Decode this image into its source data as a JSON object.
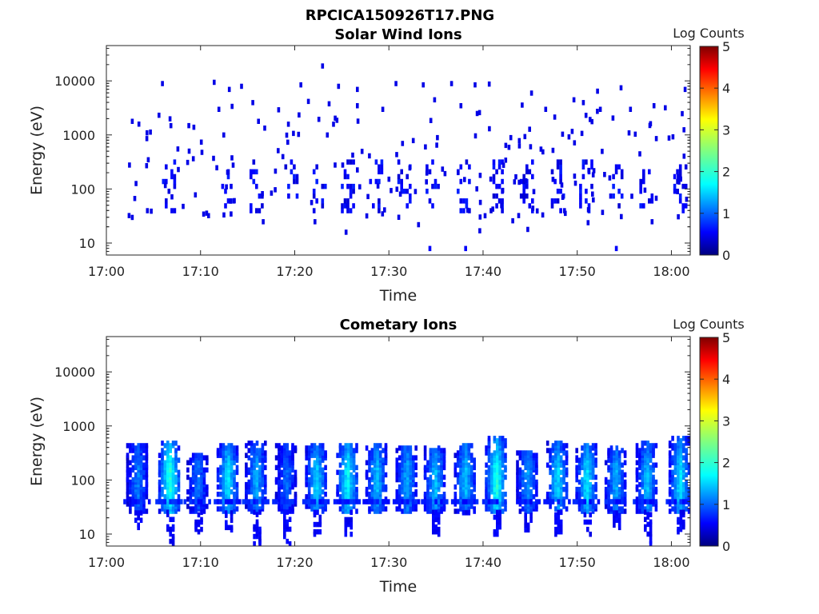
{
  "figure": {
    "title": "RPCICA150926T17.PNG"
  },
  "colorbar": {
    "label": "Log Counts",
    "ticks": [
      "0",
      "1",
      "2",
      "3",
      "4",
      "5"
    ],
    "range": [
      0,
      5
    ],
    "colormap": "jet"
  },
  "chart_data": [
    {
      "type": "heatmap",
      "title": "Solar Wind Ions",
      "xlabel": "Time",
      "ylabel": "Energy (eV)",
      "yscale": "log",
      "ylim": [
        6,
        45000
      ],
      "xlim": [
        "17:00",
        "18:02"
      ],
      "x_ticks": [
        "17:00",
        "17:10",
        "17:20",
        "17:30",
        "17:40",
        "17:50",
        "18:00"
      ],
      "y_ticks": [
        "10",
        "100",
        "1000",
        "10000"
      ],
      "burst_times_min": [
        6.5,
        12.8,
        15.8,
        19.5,
        22.5,
        25.5,
        28.5,
        31.5,
        34.5,
        37.8,
        41.3,
        44.5,
        47.8,
        50.8,
        54.0,
        57.2,
        60.8
      ],
      "points": [
        {
          "t": 5.8,
          "e": 9000,
          "v": 0.5
        },
        {
          "t": 11.3,
          "e": 9500,
          "v": 0.5
        },
        {
          "t": 12.9,
          "e": 7000,
          "v": 0.5
        },
        {
          "t": 14.2,
          "e": 8000,
          "v": 0.5
        },
        {
          "t": 20.5,
          "e": 8500,
          "v": 0.5
        },
        {
          "t": 22.8,
          "e": 19000,
          "v": 0.5
        },
        {
          "t": 24.5,
          "e": 8000,
          "v": 0.5
        },
        {
          "t": 26.5,
          "e": 7000,
          "v": 0.5
        },
        {
          "t": 30.6,
          "e": 9000,
          "v": 0.5
        },
        {
          "t": 33.5,
          "e": 8500,
          "v": 0.5
        },
        {
          "t": 36.5,
          "e": 9000,
          "v": 0.5
        },
        {
          "t": 39.0,
          "e": 8500,
          "v": 0.5
        },
        {
          "t": 40.5,
          "e": 8800,
          "v": 0.5
        },
        {
          "t": 45.0,
          "e": 6000,
          "v": 0.5
        },
        {
          "t": 49.5,
          "e": 4500,
          "v": 0.5
        },
        {
          "t": 52.0,
          "e": 6500,
          "v": 0.5
        },
        {
          "t": 54.5,
          "e": 7500,
          "v": 0.5
        },
        {
          "t": 61.3,
          "e": 7000,
          "v": 0.5
        },
        {
          "t": 2.6,
          "e": 1800,
          "v": 0.5
        },
        {
          "t": 3.3,
          "e": 1600,
          "v": 0.5
        },
        {
          "t": 6.7,
          "e": 1500,
          "v": 0.5
        },
        {
          "t": 8.6,
          "e": 1500,
          "v": 0.5
        },
        {
          "t": 11.8,
          "e": 3000,
          "v": 0.5
        },
        {
          "t": 13.2,
          "e": 3400,
          "v": 0.5
        },
        {
          "t": 15.4,
          "e": 4000,
          "v": 0.5
        },
        {
          "t": 16.0,
          "e": 1800,
          "v": 0.5
        },
        {
          "t": 21.3,
          "e": 4200,
          "v": 0.5
        },
        {
          "t": 23.5,
          "e": 3800,
          "v": 0.5
        },
        {
          "t": 26.5,
          "e": 3500,
          "v": 0.5
        },
        {
          "t": 29.2,
          "e": 3000,
          "v": 0.5
        },
        {
          "t": 34.7,
          "e": 4500,
          "v": 0.5
        },
        {
          "t": 37.5,
          "e": 3500,
          "v": 0.5
        },
        {
          "t": 44.0,
          "e": 3600,
          "v": 0.5
        },
        {
          "t": 46.5,
          "e": 3000,
          "v": 0.5
        },
        {
          "t": 50.5,
          "e": 4000,
          "v": 0.5
        },
        {
          "t": 52.3,
          "e": 3000,
          "v": 0.5
        },
        {
          "t": 55.5,
          "e": 3000,
          "v": 0.5
        },
        {
          "t": 58.0,
          "e": 3500,
          "v": 0.5
        },
        {
          "t": 59.2,
          "e": 3200,
          "v": 0.5
        },
        {
          "t": 61.0,
          "e": 2500,
          "v": 0.5
        },
        {
          "t": 2.3,
          "e": 280,
          "v": 0.5
        },
        {
          "t": 4.3,
          "e": 350,
          "v": 0.5
        },
        {
          "t": 10.0,
          "e": 480,
          "v": 0.5
        },
        {
          "t": 19.0,
          "e": 1000,
          "v": 0.5
        },
        {
          "t": 27.0,
          "e": 500,
          "v": 0.5
        },
        {
          "t": 31.3,
          "e": 700,
          "v": 0.5
        },
        {
          "t": 35.0,
          "e": 900,
          "v": 0.5
        },
        {
          "t": 42.8,
          "e": 900,
          "v": 0.5
        },
        {
          "t": 46.0,
          "e": 550,
          "v": 0.5
        },
        {
          "t": 52.5,
          "e": 500,
          "v": 0.5
        },
        {
          "t": 56.5,
          "e": 450,
          "v": 0.5
        },
        {
          "t": 2.6,
          "e": 30,
          "v": 0.5
        },
        {
          "t": 4.2,
          "e": 40,
          "v": 0.5
        },
        {
          "t": 8.0,
          "e": 48,
          "v": 0.5
        },
        {
          "t": 10.5,
          "e": 36,
          "v": 0.5
        },
        {
          "t": 16.5,
          "e": 25,
          "v": 0.5
        },
        {
          "t": 22.0,
          "e": 25,
          "v": 0.5
        },
        {
          "t": 25.3,
          "e": 16,
          "v": 0.5
        },
        {
          "t": 27.5,
          "e": 32,
          "v": 0.5
        },
        {
          "t": 33.0,
          "e": 22,
          "v": 0.5
        },
        {
          "t": 34.2,
          "e": 8,
          "v": 0.6
        },
        {
          "t": 38.0,
          "e": 8,
          "v": 0.6
        },
        {
          "t": 39.5,
          "e": 17,
          "v": 0.5
        },
        {
          "t": 43.0,
          "e": 26,
          "v": 0.5
        },
        {
          "t": 44.6,
          "e": 18,
          "v": 0.5
        },
        {
          "t": 48.5,
          "e": 40,
          "v": 0.5
        },
        {
          "t": 51.0,
          "e": 24,
          "v": 0.5
        },
        {
          "t": 54.0,
          "e": 8,
          "v": 0.6
        },
        {
          "t": 57.8,
          "e": 25,
          "v": 0.5
        },
        {
          "t": 60.5,
          "e": 90,
          "v": 0.5
        },
        {
          "t": 2.3,
          "e": 6,
          "v": 0.5
        },
        {
          "t": 6.0,
          "e": 6,
          "v": 0.5
        },
        {
          "t": 28.5,
          "e": 6,
          "v": 0.5
        },
        {
          "t": 59.5,
          "e": 6,
          "v": 0.5
        }
      ]
    },
    {
      "type": "heatmap",
      "title": "Cometary Ions",
      "xlabel": "Time",
      "ylabel": "Energy (eV)",
      "yscale": "log",
      "ylim": [
        6,
        45000
      ],
      "xlim": [
        "17:00",
        "18:02"
      ],
      "x_ticks": [
        "17:00",
        "17:10",
        "17:20",
        "17:30",
        "17:40",
        "17:50",
        "18:00"
      ],
      "y_ticks": [
        "10",
        "100",
        "1000",
        "10000"
      ],
      "bursts": [
        {
          "t": 3.2,
          "e_min": 12,
          "e_max": 450,
          "peak": 1.3
        },
        {
          "t": 6.6,
          "e_min": 6,
          "e_max": 500,
          "peak": 2.1
        },
        {
          "t": 9.6,
          "e_min": 10,
          "e_max": 300,
          "peak": 1.2
        },
        {
          "t": 12.8,
          "e_min": 12,
          "e_max": 450,
          "peak": 1.8
        },
        {
          "t": 15.8,
          "e_min": 6,
          "e_max": 500,
          "peak": 1.5
        },
        {
          "t": 19.0,
          "e_min": 6,
          "e_max": 450,
          "peak": 1.2
        },
        {
          "t": 22.2,
          "e_min": 10,
          "e_max": 480,
          "peak": 1.7
        },
        {
          "t": 25.5,
          "e_min": 10,
          "e_max": 480,
          "peak": 1.9
        },
        {
          "t": 28.6,
          "e_min": 30,
          "e_max": 480,
          "peak": 1.6
        },
        {
          "t": 31.8,
          "e_min": 30,
          "e_max": 400,
          "peak": 1.5
        },
        {
          "t": 34.8,
          "e_min": 10,
          "e_max": 400,
          "peak": 1.6
        },
        {
          "t": 38.0,
          "e_min": 25,
          "e_max": 480,
          "peak": 1.6
        },
        {
          "t": 41.3,
          "e_min": 10,
          "e_max": 600,
          "peak": 2.1
        },
        {
          "t": 44.6,
          "e_min": 12,
          "e_max": 350,
          "peak": 1.4
        },
        {
          "t": 47.8,
          "e_min": 10,
          "e_max": 500,
          "peak": 1.7
        },
        {
          "t": 50.9,
          "e_min": 10,
          "e_max": 450,
          "peak": 1.8
        },
        {
          "t": 54.0,
          "e_min": 12,
          "e_max": 400,
          "peak": 1.5
        },
        {
          "t": 57.3,
          "e_min": 6,
          "e_max": 500,
          "peak": 1.6
        },
        {
          "t": 60.8,
          "e_min": 10,
          "e_max": 600,
          "peak": 1.8
        }
      ]
    }
  ]
}
